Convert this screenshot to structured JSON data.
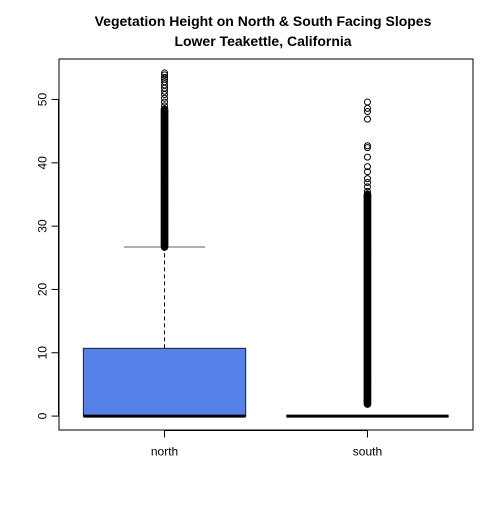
{
  "chart_data": {
    "type": "boxplot",
    "title": "Vegetation Height on North & South Facing Slopes",
    "subtitle": "Lower Teakettle, California",
    "xlabel": "",
    "ylabel": "",
    "categories": [
      "north",
      "south"
    ],
    "ylim": [
      -2.2,
      56.4
    ],
    "yticks": [
      0,
      10,
      20,
      30,
      40,
      50
    ],
    "grid": false,
    "series": [
      {
        "category": "north",
        "fill": "#5581E9",
        "min": 0,
        "q1": 0,
        "median": 0,
        "q3": 10.7,
        "whisker_high": 26.7,
        "outlier_dense_range": [
          26.7,
          48.5
        ],
        "outliers": [
          49.0,
          49.6,
          50.2,
          50.8,
          51.3,
          51.8,
          52.3,
          52.8,
          53.2,
          53.5,
          53.9,
          54.2
        ]
      },
      {
        "category": "south",
        "fill": "#5581E9",
        "min": 0,
        "q1": 0,
        "median": 0,
        "q3": 0,
        "whisker_high": 0,
        "outlier_dense_range": [
          1.9,
          35.1
        ],
        "outliers": [
          35.5,
          36.2,
          36.9,
          37.5,
          38.6,
          39.4,
          40.9,
          42.4,
          42.7,
          46.9,
          48.1,
          48.6,
          49.6
        ]
      }
    ],
    "colors": {
      "box_fill": "#5581E9",
      "whisker": "#808080",
      "axis": "#000000"
    }
  }
}
